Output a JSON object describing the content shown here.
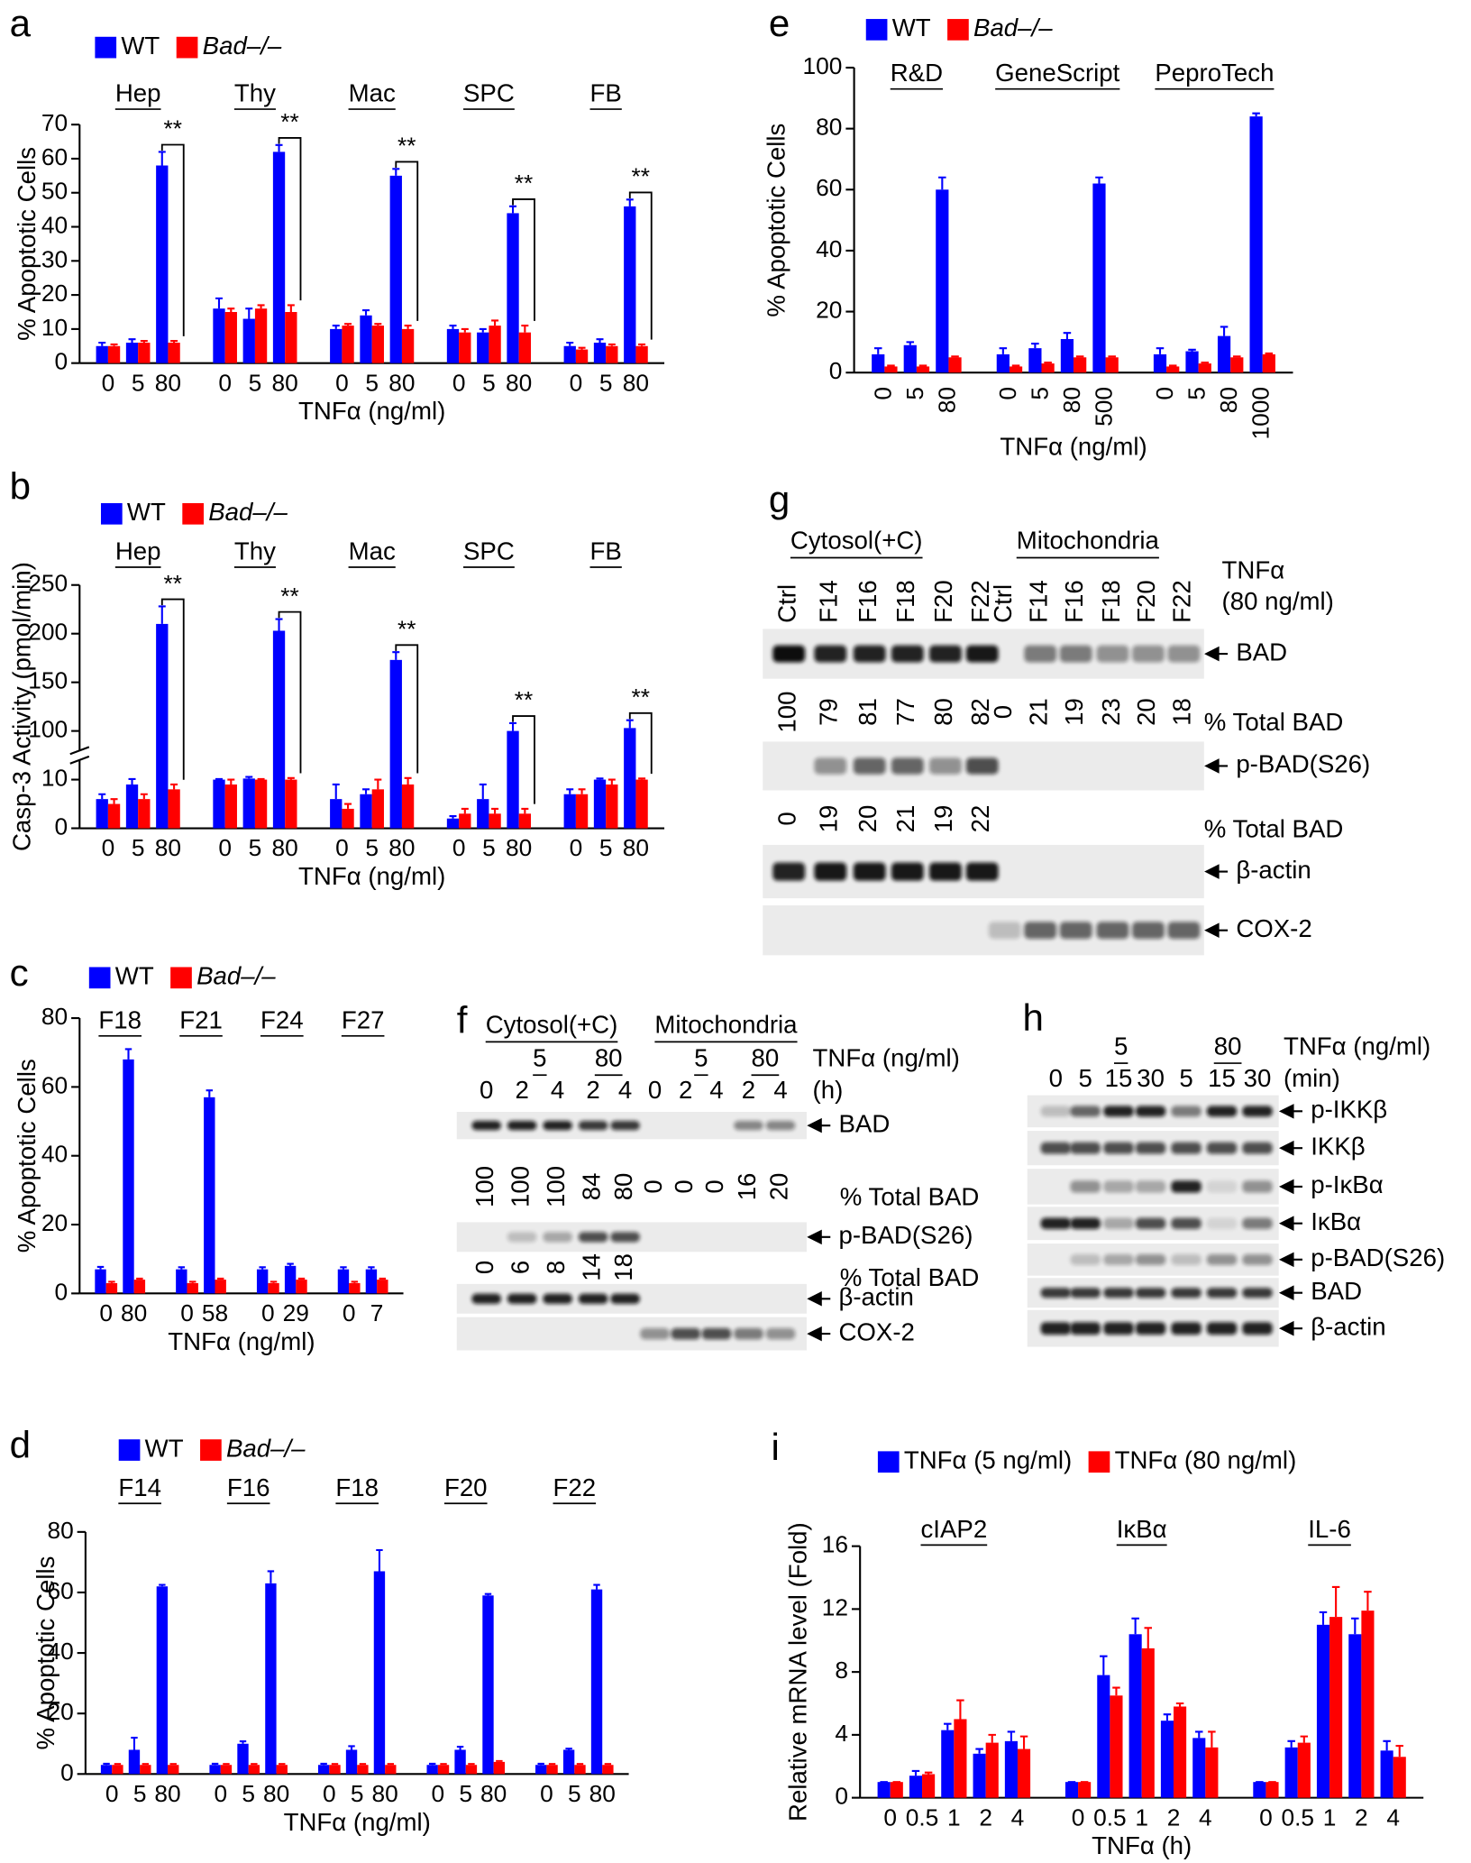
{
  "chart_data": [
    {
      "type": "bar",
      "panel": "a",
      "ylabel": "% Apoptotic Cells",
      "xlabel": "TNFα (ng/ml)",
      "groups": [
        {
          "label": "Hep",
          "categories": [
            "0",
            "5",
            "80"
          ]
        },
        {
          "label": "Thy",
          "categories": [
            "0",
            "5",
            "80"
          ]
        },
        {
          "label": "Mac",
          "categories": [
            "0",
            "5",
            "80"
          ]
        },
        {
          "label": "SPC",
          "categories": [
            "0",
            "5",
            "80"
          ]
        },
        {
          "label": "FB",
          "categories": [
            "0",
            "5",
            "80"
          ]
        }
      ],
      "significance": [
        "**",
        "**",
        "**",
        "**",
        "**"
      ],
      "series": [
        {
          "name": "WT",
          "color": "#0000ff",
          "values": [
            5,
            6,
            58,
            16,
            13,
            62,
            10,
            14,
            55,
            10,
            9,
            44,
            5,
            6,
            46
          ],
          "errors": [
            1,
            1,
            4,
            3,
            3,
            2,
            1,
            1.5,
            2,
            1,
            1,
            2,
            1,
            1,
            2
          ]
        },
        {
          "name": "Bad–/–",
          "color": "#ff0000",
          "values": [
            5,
            6,
            6,
            15,
            16,
            15,
            11,
            11,
            10,
            9,
            11,
            9,
            4,
            5,
            5
          ],
          "errors": [
            0.5,
            0.5,
            0.5,
            1,
            1,
            2,
            0.5,
            0.5,
            1,
            1,
            1.5,
            2,
            0.5,
            0.5,
            0.5
          ]
        }
      ],
      "ylim": [
        0,
        70
      ],
      "yticks": [
        0,
        10,
        20,
        30,
        40,
        50,
        60,
        70
      ]
    },
    {
      "type": "bar",
      "panel": "b",
      "ylabel": "Casp-3 Activity (pmol/min)",
      "xlabel": "TNFα (ng/ml)",
      "axis_break": true,
      "groups": [
        {
          "label": "Hep",
          "categories": [
            "0",
            "5",
            "80"
          ]
        },
        {
          "label": "Thy",
          "categories": [
            "0",
            "5",
            "80"
          ]
        },
        {
          "label": "Mac",
          "categories": [
            "0",
            "5",
            "80"
          ]
        },
        {
          "label": "SPC",
          "categories": [
            "0",
            "5",
            "80"
          ]
        },
        {
          "label": "FB",
          "categories": [
            "0",
            "5",
            "80"
          ]
        }
      ],
      "significance": [
        "**",
        "**",
        "**",
        "**",
        "**"
      ],
      "series": [
        {
          "name": "WT",
          "color": "#0000ff",
          "values": [
            6,
            9,
            210,
            10,
            12,
            203,
            6,
            7,
            173,
            2,
            6,
            100,
            7,
            10,
            103
          ],
          "errors": [
            1,
            2,
            18,
            1,
            3,
            12,
            3,
            1,
            8,
            0.5,
            3,
            8,
            1,
            2,
            8
          ]
        },
        {
          "name": "Bad–/–",
          "color": "#ff0000",
          "values": [
            5,
            6,
            8,
            9,
            10,
            10,
            4,
            8,
            9,
            3,
            3,
            3,
            7,
            9,
            10
          ],
          "errors": [
            1,
            1,
            1,
            1,
            1,
            3,
            1,
            2,
            4,
            1,
            1,
            1,
            1,
            1,
            2
          ]
        }
      ],
      "ylim": [
        0,
        250
      ],
      "yticks": [
        0,
        10,
        100,
        150,
        200,
        250
      ]
    },
    {
      "type": "bar",
      "panel": "c",
      "ylabel": "% Apoptotic Cells",
      "xlabel": "TNFα  (ng/ml)",
      "groups": [
        {
          "label": "F18",
          "categories": [
            "0",
            "80"
          ]
        },
        {
          "label": "F21",
          "categories": [
            "0",
            "58"
          ]
        },
        {
          "label": "F24",
          "categories": [
            "0",
            "29"
          ]
        },
        {
          "label": "F27",
          "categories": [
            "0",
            "7"
          ]
        }
      ],
      "series": [
        {
          "name": "WT",
          "color": "#0000ff",
          "values": [
            7,
            68,
            7,
            57,
            7,
            8,
            7,
            7
          ],
          "errors": [
            0.7,
            3,
            0.6,
            2,
            0.6,
            0.6,
            0.6,
            0.6
          ]
        },
        {
          "name": "Bad–/–",
          "color": "#ff0000",
          "values": [
            3,
            4,
            3,
            4,
            3,
            4,
            3,
            4
          ],
          "errors": [
            0.4,
            0.3,
            0.4,
            0.3,
            0.4,
            0.3,
            0.4,
            0.3
          ]
        }
      ],
      "ylim": [
        0,
        80
      ],
      "yticks": [
        0,
        20,
        40,
        60,
        80
      ]
    },
    {
      "type": "bar",
      "panel": "d",
      "ylabel": "% Apoptotic Cells",
      "xlabel": "TNFα (ng/ml)",
      "groups": [
        {
          "label": "F14",
          "categories": [
            "0",
            "5",
            "80"
          ]
        },
        {
          "label": "F16",
          "categories": [
            "0",
            "5",
            "80"
          ]
        },
        {
          "label": "F18",
          "categories": [
            "0",
            "5",
            "80"
          ]
        },
        {
          "label": "F20",
          "categories": [
            "0",
            "5",
            "80"
          ]
        },
        {
          "label": "F22",
          "categories": [
            "0",
            "5",
            "80"
          ]
        }
      ],
      "series": [
        {
          "name": "WT",
          "color": "#0000ff",
          "values": [
            3,
            8,
            62,
            3,
            10,
            63,
            3,
            8,
            67,
            3,
            8,
            59,
            3,
            8,
            61
          ],
          "errors": [
            0.4,
            4,
            0.5,
            0.4,
            0.8,
            4,
            0.4,
            1.2,
            7,
            0.4,
            1,
            0.5,
            0.4,
            0.4,
            1.5
          ]
        },
        {
          "name": "Bad–/–",
          "color": "#ff0000",
          "values": [
            3,
            3,
            3,
            3,
            3,
            3,
            3,
            3,
            3,
            3,
            3,
            4,
            3,
            3,
            3
          ],
          "errors": [
            0.3,
            0.3,
            0.3,
            0.3,
            0.3,
            0.3,
            0.3,
            0.3,
            0.3,
            0.3,
            0.3,
            0.3,
            0.3,
            0.3,
            0.3
          ]
        }
      ],
      "ylim": [
        0,
        80
      ],
      "yticks": [
        0,
        20,
        40,
        60,
        80
      ]
    },
    {
      "type": "bar",
      "panel": "e",
      "ylabel": "% Apoptotic Cells",
      "xlabel": "TNFα (ng/ml)",
      "groups": [
        {
          "label": "R&D",
          "categories": [
            "0",
            "5",
            "80"
          ]
        },
        {
          "label": "GeneScript",
          "categories": [
            "0",
            "5",
            "80",
            "500"
          ]
        },
        {
          "label": "PeproTech",
          "categories": [
            "0",
            "5",
            "80",
            "1000"
          ]
        }
      ],
      "series": [
        {
          "name": "WT",
          "color": "#0000ff",
          "values": [
            6,
            9,
            60,
            6,
            8,
            11,
            62,
            6,
            7,
            12,
            84
          ],
          "errors": [
            2,
            1,
            4,
            2,
            1.5,
            2,
            2,
            2,
            0.5,
            3,
            1
          ]
        },
        {
          "name": "Bad–/–",
          "color": "#ff0000",
          "values": [
            2,
            2,
            5,
            2,
            3,
            5,
            5,
            2,
            3,
            5,
            6
          ],
          "errors": [
            0.3,
            0.3,
            0.3,
            0.3,
            0.3,
            0.3,
            0.3,
            0.3,
            0.3,
            0.3,
            0.3
          ]
        }
      ],
      "ylim": [
        0,
        100
      ],
      "yticks": [
        0,
        20,
        40,
        60,
        80,
        100
      ]
    },
    {
      "type": "bar",
      "panel": "i",
      "ylabel": "Relative mRNA level  (Fold)",
      "xlabel": "TNFα (h)",
      "groups": [
        {
          "label": "cIAP2",
          "categories": [
            "0",
            "0.5",
            "1",
            "2",
            "4"
          ]
        },
        {
          "label": "IκBα",
          "categories": [
            "0",
            "0.5",
            "1",
            "2",
            "4"
          ]
        },
        {
          "label": "IL-6",
          "categories": [
            "0",
            "0.5",
            "1",
            "2",
            "4"
          ]
        }
      ],
      "series": [
        {
          "name": "TNFα (5 ng/ml)",
          "color": "#0000ff",
          "values": [
            1,
            1.4,
            4.3,
            2.8,
            3.6,
            1,
            7.8,
            10.4,
            4.9,
            3.8,
            1,
            3.2,
            11,
            10.4,
            3
          ],
          "errors": [
            0,
            0.3,
            0.4,
            0.3,
            0.6,
            0,
            1.2,
            1,
            0.4,
            0.4,
            0,
            0.4,
            0.8,
            1,
            0.6
          ]
        },
        {
          "name": "TNFα (80 ng/ml)",
          "color": "#ff0000",
          "values": [
            1,
            1.5,
            5,
            3.5,
            3.1,
            1,
            6.5,
            9.5,
            5.8,
            3.2,
            1,
            3.5,
            11.5,
            11.9,
            2.6
          ],
          "errors": [
            0,
            0.1,
            1.2,
            0.5,
            0.8,
            0,
            0.5,
            1.3,
            0.2,
            1,
            0,
            0.4,
            1.9,
            1.2,
            0.7
          ]
        }
      ],
      "ylim": [
        0,
        16
      ],
      "yticks": [
        0,
        4,
        8,
        12,
        16
      ]
    }
  ],
  "blots": [
    {
      "panel": "f",
      "headers": [
        "Cytosol(+C)",
        "Mitochondria"
      ],
      "subheaders": [
        "5",
        "80",
        "5",
        "80"
      ],
      "lanes": [
        "0",
        "2",
        "4",
        "2",
        "4",
        "0",
        "2",
        "4",
        "2",
        "4"
      ],
      "axis_labels": [
        "TNFα (ng/ml)",
        "(h)"
      ],
      "rows": [
        "BAD",
        "p-BAD(S26)",
        "β-actin",
        "COX-2"
      ],
      "percent_rows": [
        {
          "label": "% Total BAD",
          "values": [
            100,
            100,
            100,
            84,
            80,
            0,
            0,
            0,
            16,
            20
          ]
        },
        {
          "label": "% Total BAD",
          "values": [
            0,
            6,
            8,
            14,
            18
          ]
        }
      ]
    },
    {
      "panel": "g",
      "headers": [
        "Cytosol(+C)",
        "Mitochondria"
      ],
      "subheaders": [],
      "lanes": [
        "Ctrl",
        "F14",
        "F16",
        "F18",
        "F20",
        "F22",
        "Ctrl",
        "F14",
        "F16",
        "F18",
        "F20",
        "F22"
      ],
      "axis_labels": [
        "TNFα",
        "(80 ng/ml)"
      ],
      "rows": [
        "BAD",
        "p-BAD(S26)",
        "β-actin",
        "COX-2"
      ],
      "percent_rows": [
        {
          "label": "% Total BAD",
          "values": [
            100,
            79,
            81,
            77,
            80,
            82,
            0,
            21,
            19,
            23,
            20,
            18
          ]
        },
        {
          "label": "% Total BAD",
          "values": [
            0,
            19,
            20,
            21,
            19,
            22
          ]
        }
      ]
    },
    {
      "panel": "h",
      "headers": [],
      "subheaders": [
        "5",
        "80"
      ],
      "lanes": [
        "0",
        "5",
        "15",
        "30",
        "5",
        "15",
        "30"
      ],
      "axis_labels": [
        "TNFα (ng/ml)",
        "(min)"
      ],
      "rows": [
        "p-IKKβ",
        "IKKβ",
        "p-IκBα",
        "IκBα",
        "p-BAD(S26)",
        "BAD",
        "β-actin"
      ],
      "percent_rows": []
    }
  ]
}
